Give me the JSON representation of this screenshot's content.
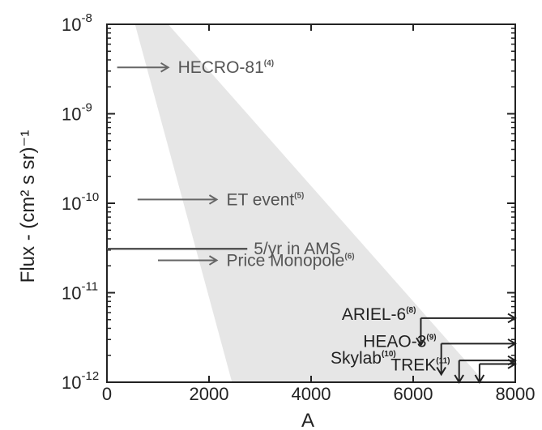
{
  "chart_data": {
    "type": "line",
    "title": "",
    "xlabel": "A",
    "ylabel": "Flux - (cm² s sr)⁻¹",
    "xlim": [
      0,
      8000
    ],
    "ylim": [
      1e-12,
      1e-08
    ],
    "yscale": "log",
    "x_ticks": [
      "0",
      "2000",
      "4000",
      "6000",
      "8000"
    ],
    "y_ticks": [
      {
        "base": "10",
        "exp": "-8",
        "value": 1e-08
      },
      {
        "base": "10",
        "exp": "-9",
        "value": 1e-09
      },
      {
        "base": "10",
        "exp": "-10",
        "value": 1e-10
      },
      {
        "base": "10",
        "exp": "-11",
        "value": 1e-11
      },
      {
        "base": "10",
        "exp": "-12",
        "value": 1e-12
      }
    ],
    "shaded_region": {
      "color": "#e6e6e6",
      "polygon": [
        [
          550,
          1e-08
        ],
        [
          1200,
          1e-08
        ],
        [
          7400,
          1e-12
        ],
        [
          2450,
          1e-12
        ]
      ]
    },
    "arrows": [
      {
        "label": "HECRO-81",
        "ref": "(4)",
        "y": 3.3e-09,
        "x_start": 200,
        "x_end": 1200,
        "direction": "right",
        "color": "#666666"
      },
      {
        "label": "ET event",
        "ref": "(5)",
        "y": 1.1e-10,
        "x_start": 600,
        "x_end": 2150,
        "direction": "right",
        "color": "#666666"
      },
      {
        "label": "Price Monopole",
        "ref": "(6)",
        "y": 2.3e-11,
        "x_start": 1000,
        "x_end": 2150,
        "direction": "right",
        "color": "#666666"
      }
    ],
    "lines": [
      {
        "label": "5/yr in AMS",
        "y": 3.1e-11,
        "x_start": 0,
        "x_end": 2750,
        "color": "#555555"
      }
    ],
    "limits": [
      {
        "label": "ARIEL-6",
        "ref": "(8)",
        "y": 5.2e-12,
        "x_corner": 6150,
        "y_down_to": 2.6e-12,
        "x_right_to": 8000,
        "color": "#222222"
      },
      {
        "label": "HEAO-3",
        "ref": "(9)",
        "y": 2.7e-12,
        "x_corner": 6550,
        "y_down_to": 1.22e-12,
        "x_right_to": 8000,
        "color": "#222222"
      },
      {
        "label": "Skylab",
        "ref": "(10)",
        "y": 1.75e-12,
        "x_corner": 6900,
        "y_down_to": 1e-12,
        "x_right_to": 8000,
        "color": "#222222"
      },
      {
        "label": "TREK",
        "ref": "(11)",
        "y": 1.6e-12,
        "x_corner": 7300,
        "y_down_to": 1e-12,
        "x_right_to": 8000,
        "color": "#222222"
      }
    ],
    "grid": false,
    "legend": "none"
  }
}
